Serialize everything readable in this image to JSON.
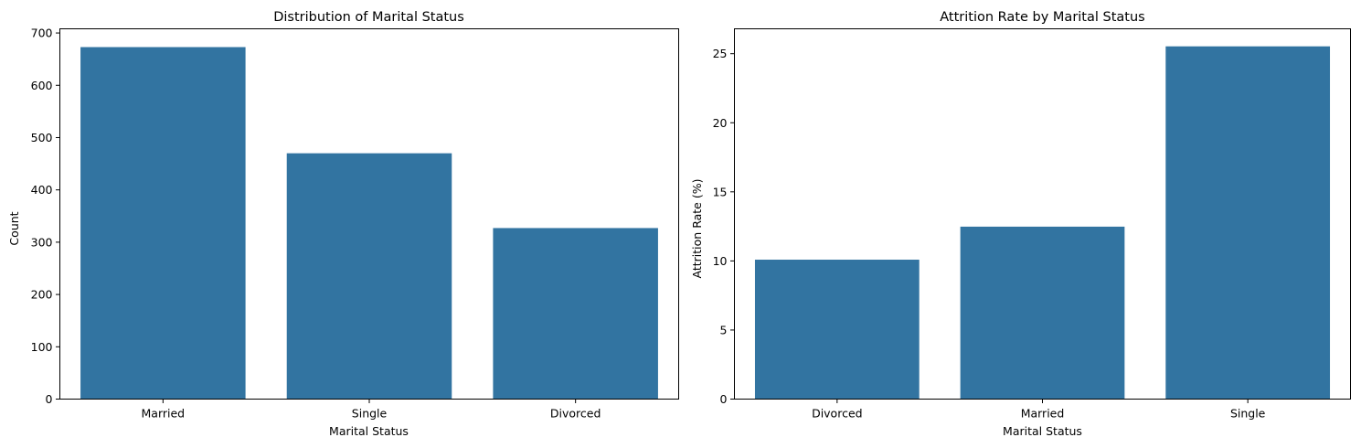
{
  "chart_data": [
    {
      "type": "bar",
      "title": "Distribution of Marital Status",
      "xlabel": "Marital Status",
      "ylabel": "Count",
      "categories": [
        "Married",
        "Single",
        "Divorced"
      ],
      "values": [
        673,
        470,
        327
      ],
      "ylim": [
        0,
        708
      ],
      "yticks": [
        0,
        100,
        200,
        300,
        400,
        500,
        600,
        700
      ],
      "color": "#3274a1",
      "grid": false
    },
    {
      "type": "bar",
      "title": "Attrition Rate by Marital Status",
      "xlabel": "Marital Status",
      "ylabel": "Attrition Rate (%)",
      "categories": [
        "Divorced",
        "Married",
        "Single"
      ],
      "values": [
        10.09,
        12.48,
        25.53
      ],
      "ylim": [
        0,
        26.8
      ],
      "yticks": [
        0,
        5,
        10,
        15,
        20,
        25
      ],
      "color": "#3274a1",
      "grid": false
    }
  ]
}
